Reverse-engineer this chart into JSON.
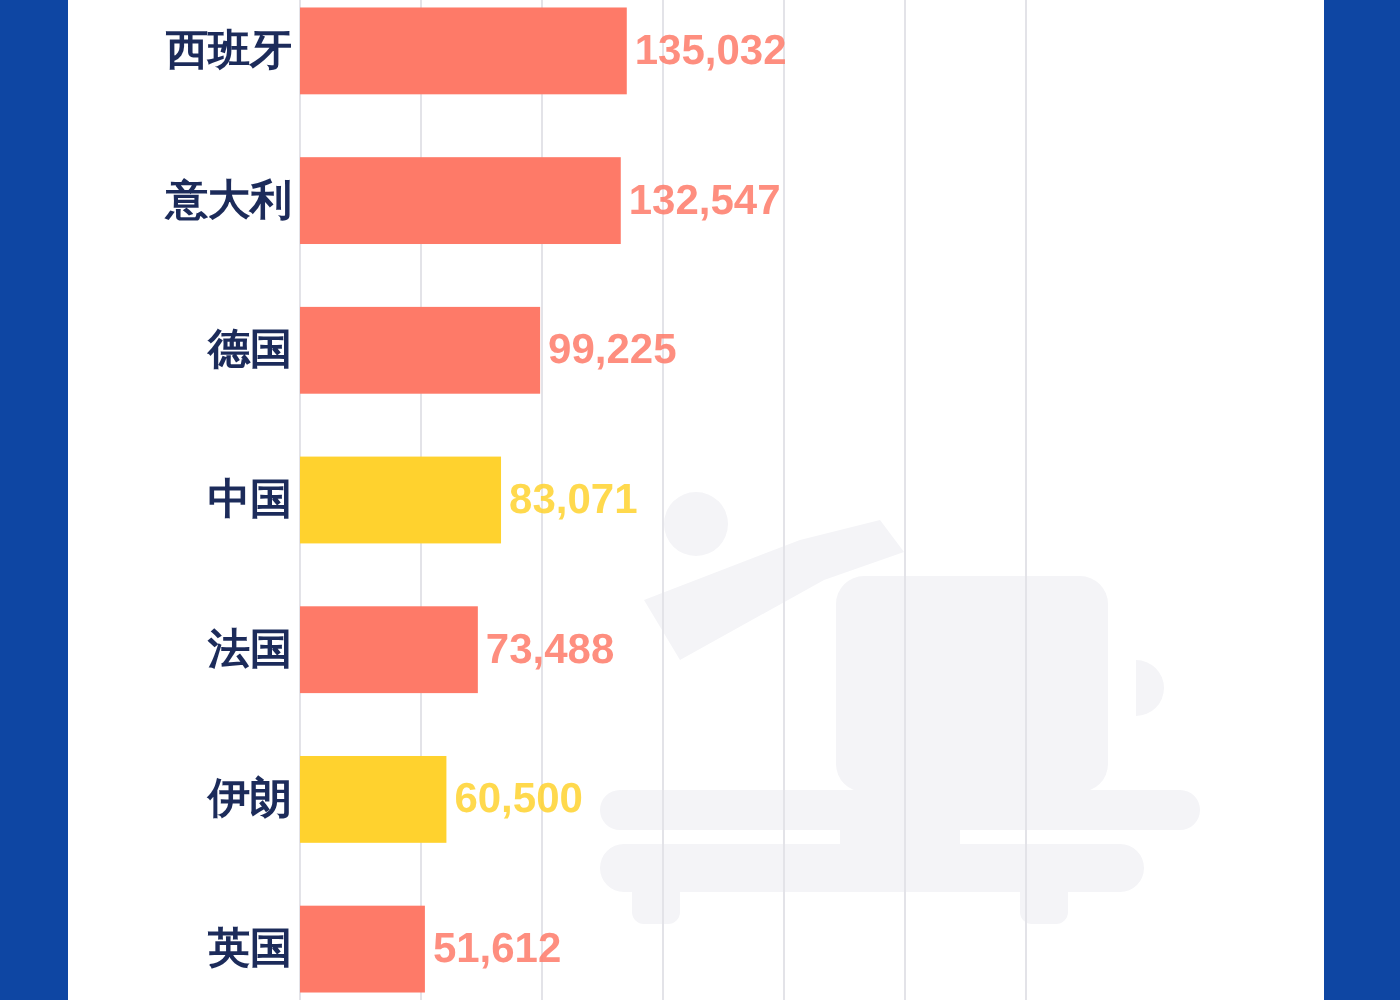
{
  "chart_data": {
    "type": "bar",
    "orientation": "horizontal",
    "categories": [
      "西班牙",
      "意大利",
      "德国",
      "中国",
      "法国",
      "伊朗",
      "英国"
    ],
    "values": [
      135032,
      132547,
      99225,
      83071,
      73488,
      60500,
      51612
    ],
    "value_labels": [
      "135,032",
      "132,547",
      "99,225",
      "83,071",
      "73,488",
      "60,500",
      "51,612"
    ],
    "colors": [
      "#fe7a68",
      "#fe7a68",
      "#fe7a68",
      "#ffd22e",
      "#fe7a68",
      "#ffd22e",
      "#fe7a68"
    ],
    "xlim": [
      0,
      300000
    ],
    "xticks": [
      {
        "value": 0,
        "label": null
      },
      {
        "value": 50000,
        "label": null
      },
      {
        "value": 100000,
        "label": null
      },
      {
        "value": 150000,
        "label": null
      },
      {
        "value": 200000,
        "label": null
      },
      {
        "value": 250000,
        "label": null
      },
      {
        "value": 300000,
        "label": null
      }
    ],
    "grid": "x",
    "tick_labels": "y"
  }
}
